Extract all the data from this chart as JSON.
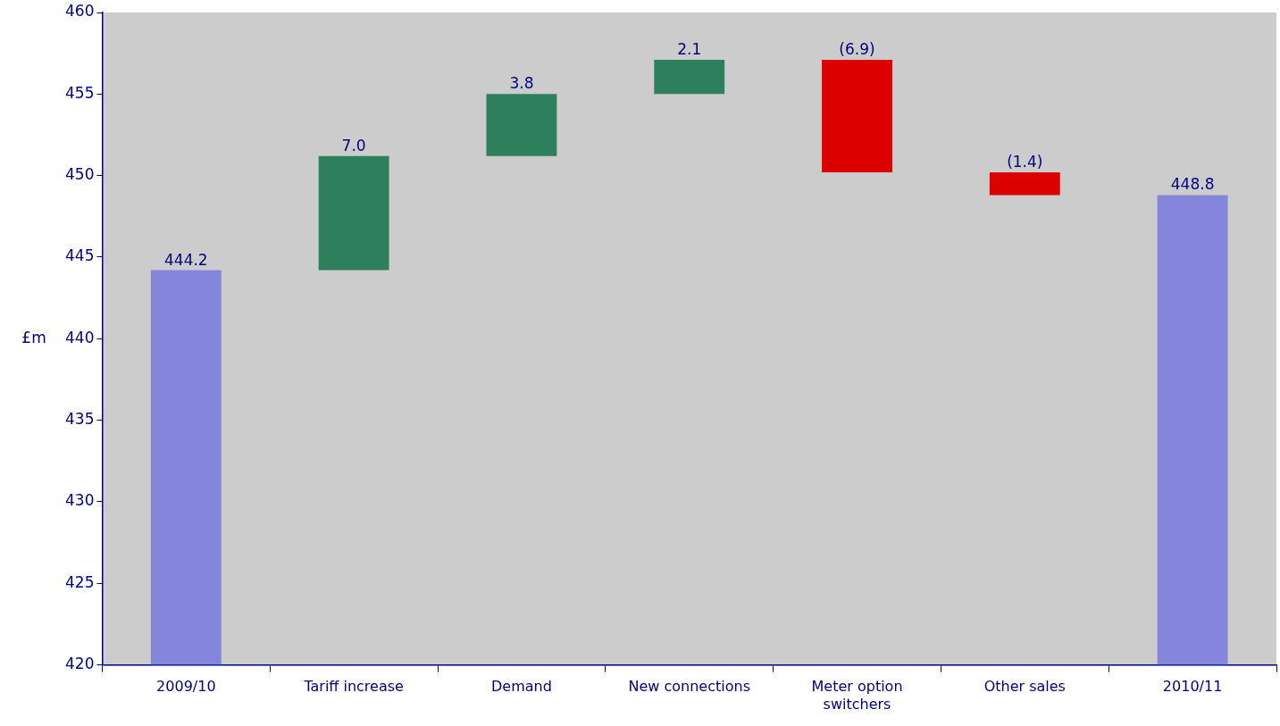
{
  "chart_data": {
    "type": "bar",
    "ylabel": "£m",
    "categories": [
      "2009/10",
      "Tariff increase",
      "Demand",
      "New connections",
      "Meter option switchers",
      "Other sales",
      "2010/11"
    ],
    "base": [
      420,
      444.2,
      451.2,
      455.0,
      457.1,
      450.2,
      420
    ],
    "values": [
      24.2,
      7.0,
      3.8,
      2.1,
      -6.9,
      -1.4,
      28.8
    ],
    "value_labels": [
      "444.2",
      "7.0",
      "3.8",
      "2.1",
      "(6.9)",
      "(1.4)",
      "448.8"
    ],
    "colors": [
      "#8585dc",
      "#2e7f5c",
      "#2e7f5c",
      "#2e7f5c",
      "#dd0000",
      "#dd0000",
      "#8585dc"
    ],
    "ylim": [
      420,
      460
    ],
    "yticks": [
      420,
      425,
      430,
      435,
      440,
      445,
      450,
      455,
      460
    ],
    "grid": false,
    "legend": false
  }
}
